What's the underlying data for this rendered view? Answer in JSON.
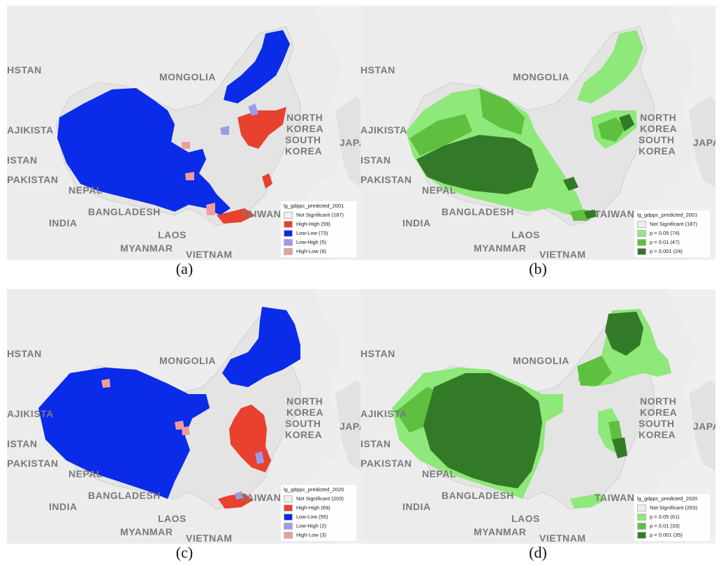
{
  "colors": {
    "ocean": "#eef0f0",
    "land": "#ececec",
    "china": "#e4e4e4",
    "lisa_high_high": "#e8412d",
    "lisa_low_low": "#0a2be8",
    "lisa_low_high": "#9b9be6",
    "lisa_high_low": "#ee9c9c",
    "p005": "#8ee87a",
    "p001": "#5ec03e",
    "p0001": "#337a28",
    "not_significant": "#eeeeee"
  },
  "map_labels": {
    "mongolia": "MONGOLIA",
    "north_korea": "NORTH KOREA",
    "south_korea": "SOUTH KOREA",
    "japan": "JAPA",
    "tajikistan": "AJIKISTA",
    "afghanistan": "HSTAN",
    "pakistan": "PAKISTAN",
    "pakistan_top": "ISTAN",
    "nepal": "NEPAL",
    "bangladesh": "BANGLADESH",
    "india": "INDIA",
    "laos": "LAOS",
    "myanmar": "MYANMAR",
    "vietnam": "VIETNAM",
    "taiwan": "TAIWAN"
  },
  "panels": [
    {
      "caption": "(a)",
      "type": "lisa",
      "legend_title": "lg_gdppc_predicted_2001",
      "legend": [
        {
          "label": "Not Significant (187)",
          "color": "#eeeeee"
        },
        {
          "label": "High-High (59)",
          "color": "#e8412d"
        },
        {
          "label": "Low-Low (73)",
          "color": "#0a2be8"
        },
        {
          "label": "Low-High (5)",
          "color": "#9b9be6"
        },
        {
          "label": "High-Low (8)",
          "color": "#ee9c9c"
        }
      ]
    },
    {
      "caption": "(b)",
      "type": "sig",
      "legend_title": "lg_gdppc_predicted_2001",
      "legend": [
        {
          "label": "Not Significant (187)",
          "color": "#eeeeee"
        },
        {
          "label": "p = 0.05 (74)",
          "color": "#8ee87a"
        },
        {
          "label": "p = 0.01 (47)",
          "color": "#5ec03e"
        },
        {
          "label": "p = 0.001 (24)",
          "color": "#337a28"
        }
      ]
    },
    {
      "caption": "(c)",
      "type": "lisa",
      "legend_title": "lg_gdppc_predicted_2020",
      "legend": [
        {
          "label": "Not Significant (203)",
          "color": "#eeeeee"
        },
        {
          "label": "High-High (69)",
          "color": "#e8412d"
        },
        {
          "label": "Low-Low (55)",
          "color": "#0a2be8"
        },
        {
          "label": "Low-High (2)",
          "color": "#9b9be6"
        },
        {
          "label": "High-Low (3)",
          "color": "#ee9c9c"
        }
      ]
    },
    {
      "caption": "(d)",
      "type": "sig",
      "legend_title": "lg_gdppc_predicted_2020",
      "legend": [
        {
          "label": "Not Significant (203)",
          "color": "#eeeeee"
        },
        {
          "label": "p = 0.05 (61)",
          "color": "#8ee87a"
        },
        {
          "label": "p = 0.01 (33)",
          "color": "#5ec03e"
        },
        {
          "label": "p = 0.001 (35)",
          "color": "#337a28"
        }
      ]
    }
  ]
}
